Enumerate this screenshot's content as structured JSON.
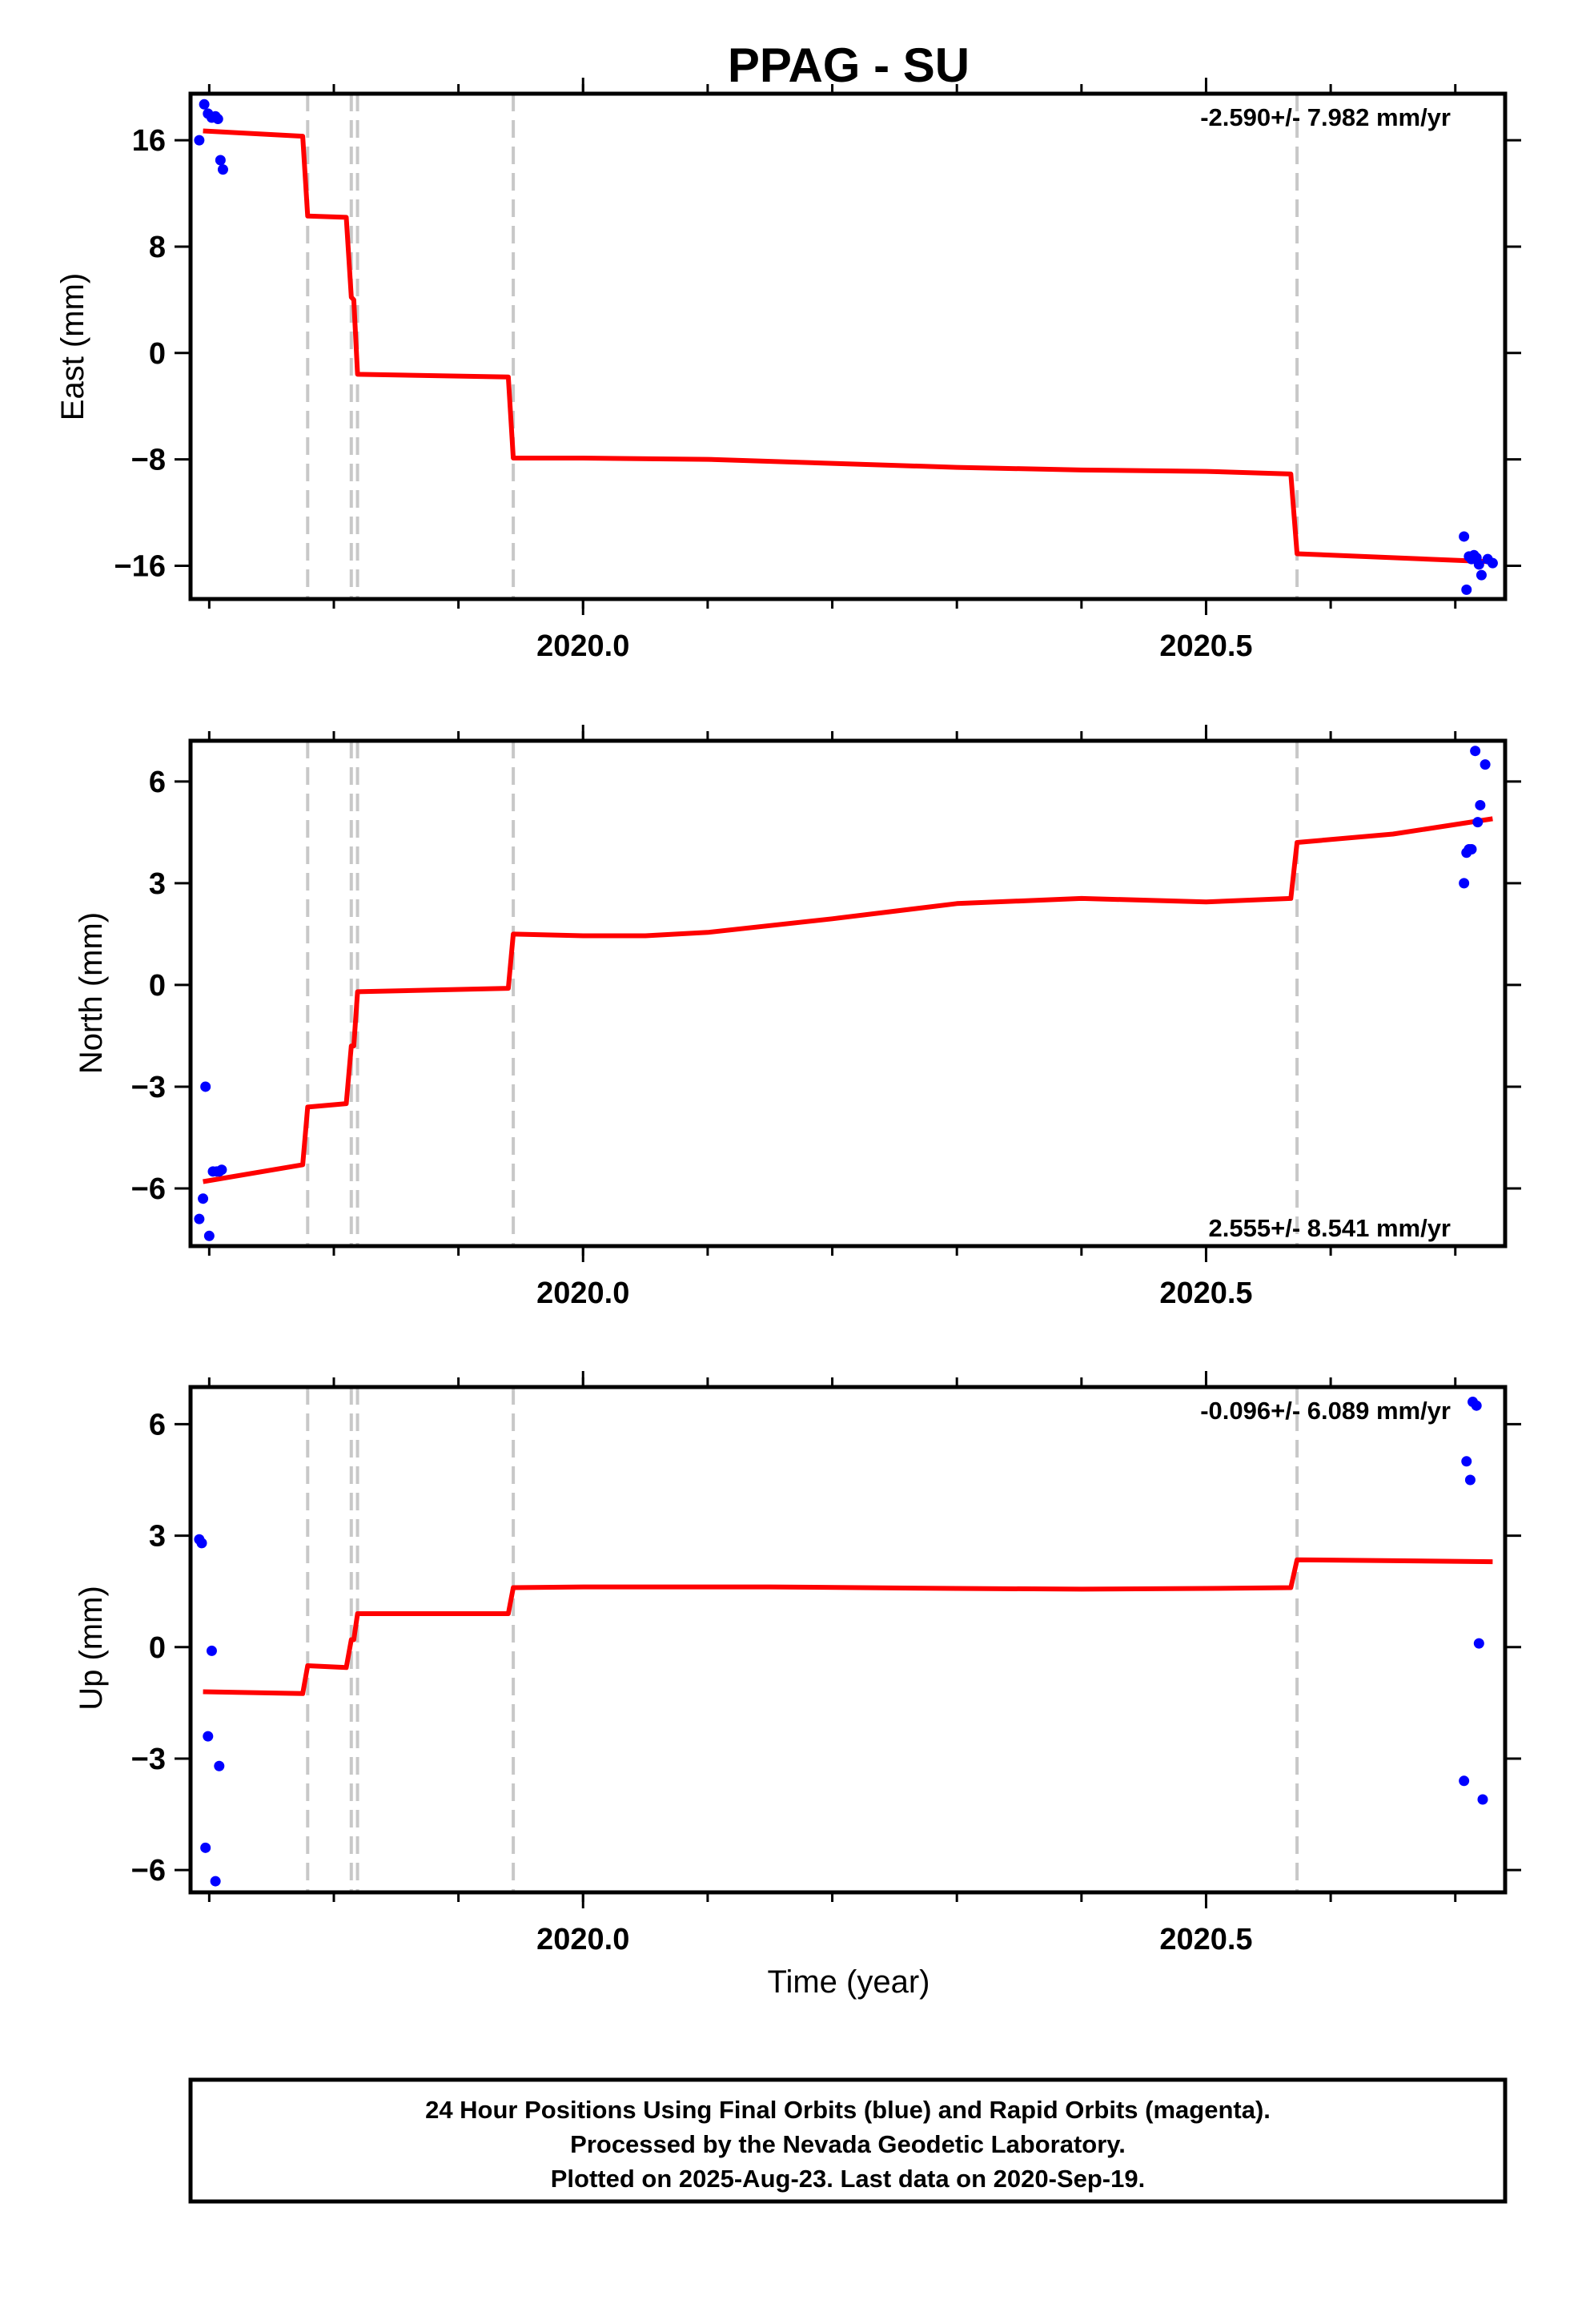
{
  "title": "PPAG - SU",
  "xlabel": "Time (year)",
  "colors": {
    "model": "#ff0000",
    "final_orbits": "#0000ff",
    "offsets": "#c8c8c8",
    "frame": "#000000"
  },
  "caption": [
    "24 Hour Positions Using Final Orbits (blue) and Rapid Orbits (magenta).",
    "Processed by the Nevada Geodetic Laboratory.",
    "Plotted on 2025-Aug-23. Last data on 2020-Sep-19."
  ],
  "chart_data": [
    {
      "type": "scatter",
      "ylabel": "East (mm)",
      "rate_label": "-2.590+/- 7.982 mm/yr",
      "rate_position": "top-right",
      "xlim": [
        2019.685,
        2020.74
      ],
      "ylim": [
        -18.5,
        19.5
      ],
      "xticks": [
        2020.0,
        2020.5
      ],
      "xtick_labels": [
        "2020.0",
        "2020.5"
      ],
      "yticks": [
        16,
        8,
        0,
        -8,
        -16
      ],
      "ytick_labels": [
        "16",
        "8",
        "0",
        "−8",
        "−16"
      ],
      "offsets": [
        2019.779,
        2019.814,
        2019.819,
        2019.944,
        2020.573
      ],
      "series": [
        {
          "kind": "points",
          "x": [
            2019.692,
            2019.696,
            2019.699,
            2019.702,
            2019.705,
            2019.707,
            2019.709,
            2019.711,
            2020.707,
            2020.709,
            2020.711,
            2020.713,
            2020.715,
            2020.717,
            2020.719,
            2020.721,
            2020.726,
            2020.73
          ],
          "y": [
            16.0,
            18.7,
            18.0,
            17.7,
            17.8,
            17.6,
            14.5,
            13.8,
            -13.8,
            -17.8,
            -15.3,
            -15.5,
            -15.2,
            -15.4,
            -15.9,
            -16.7,
            -15.5,
            -15.8
          ]
        },
        {
          "kind": "model",
          "x": [
            2019.695,
            2019.775,
            2019.779,
            2019.81,
            2019.814,
            2019.816,
            2019.819,
            2019.94,
            2019.944,
            2020.0,
            2020.1,
            2020.2,
            2020.3,
            2020.4,
            2020.5,
            2020.568,
            2020.573,
            2020.73
          ],
          "y": [
            16.7,
            16.3,
            10.3,
            10.2,
            4.2,
            4.0,
            -1.6,
            -1.8,
            -7.9,
            -7.9,
            -8.0,
            -8.3,
            -8.6,
            -8.8,
            -8.9,
            -9.1,
            -15.1,
            -15.7
          ]
        }
      ]
    },
    {
      "type": "scatter",
      "ylabel": "North (mm)",
      "rate_label": "2.555+/- 8.541 mm/yr",
      "rate_position": "bottom-right",
      "xlim": [
        2019.685,
        2020.74
      ],
      "ylim": [
        -7.7,
        7.2
      ],
      "xticks": [
        2020.0,
        2020.5
      ],
      "xtick_labels": [
        "2020.0",
        "2020.5"
      ],
      "yticks": [
        6,
        3,
        0,
        -3,
        -6
      ],
      "ytick_labels": [
        "6",
        "3",
        "0",
        "−3",
        "−6"
      ],
      "offsets": [
        2019.779,
        2019.814,
        2019.819,
        2019.944,
        2020.573
      ],
      "series": [
        {
          "kind": "points",
          "x": [
            2019.692,
            2019.695,
            2019.697,
            2019.7,
            2019.703,
            2019.706,
            2019.708,
            2019.71,
            2020.707,
            2020.709,
            2020.711,
            2020.713,
            2020.716,
            2020.718,
            2020.72,
            2020.724
          ],
          "y": [
            -6.9,
            -6.3,
            -3.0,
            -7.4,
            -5.5,
            -5.5,
            -5.5,
            -5.45,
            3.0,
            3.9,
            4.0,
            4.0,
            6.9,
            4.8,
            5.3,
            6.5
          ]
        },
        {
          "kind": "model",
          "x": [
            2019.695,
            2019.775,
            2019.779,
            2019.81,
            2019.814,
            2019.816,
            2019.819,
            2019.94,
            2019.944,
            2020.0,
            2020.05,
            2020.1,
            2020.2,
            2020.3,
            2020.4,
            2020.5,
            2020.568,
            2020.573,
            2020.65,
            2020.73
          ],
          "y": [
            -5.8,
            -5.3,
            -3.6,
            -3.5,
            -1.8,
            -1.8,
            -0.2,
            -0.1,
            1.5,
            1.45,
            1.45,
            1.55,
            1.95,
            2.4,
            2.55,
            2.45,
            2.55,
            4.2,
            4.45,
            4.9
          ]
        }
      ]
    },
    {
      "type": "scatter",
      "ylabel": "Up (mm)",
      "rate_label": "-0.096+/- 6.089 mm/yr",
      "rate_position": "top-right",
      "xlim": [
        2019.685,
        2020.74
      ],
      "ylim": [
        -6.6,
        7.0
      ],
      "xticks": [
        2020.0,
        2020.5
      ],
      "xtick_labels": [
        "2020.0",
        "2020.5"
      ],
      "yticks": [
        6,
        3,
        0,
        -3,
        -6
      ],
      "ytick_labels": [
        "6",
        "3",
        "0",
        "−3",
        "−6"
      ],
      "offsets": [
        2019.779,
        2019.814,
        2019.819,
        2019.944,
        2020.573
      ],
      "series": [
        {
          "kind": "points",
          "x": [
            2019.692,
            2019.694,
            2019.697,
            2019.699,
            2019.702,
            2019.705,
            2019.708,
            2020.707,
            2020.709,
            2020.712,
            2020.714,
            2020.717,
            2020.719,
            2020.722
          ],
          "y": [
            2.9,
            2.8,
            -5.4,
            -2.4,
            -0.1,
            -6.3,
            -3.2,
            -3.6,
            5.0,
            4.5,
            6.6,
            6.5,
            0.1,
            -4.1
          ]
        },
        {
          "kind": "model",
          "x": [
            2019.695,
            2019.775,
            2019.779,
            2019.81,
            2019.814,
            2019.816,
            2019.819,
            2019.94,
            2019.944,
            2020.0,
            2020.15,
            2020.3,
            2020.4,
            2020.5,
            2020.568,
            2020.573,
            2020.73
          ],
          "y": [
            -1.2,
            -1.25,
            -0.5,
            -0.55,
            0.2,
            0.2,
            0.9,
            0.9,
            1.6,
            1.62,
            1.62,
            1.58,
            1.56,
            1.58,
            1.6,
            2.35,
            2.3
          ]
        }
      ]
    }
  ]
}
